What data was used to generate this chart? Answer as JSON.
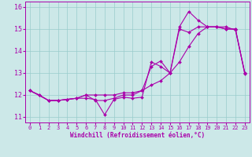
{
  "xlabel": "Windchill (Refroidissement éolien,°C)",
  "xlim": [
    -0.5,
    23.5
  ],
  "ylim": [
    10.75,
    16.25
  ],
  "yticks": [
    11,
    12,
    13,
    14,
    15,
    16
  ],
  "xticks": [
    0,
    1,
    2,
    3,
    4,
    5,
    6,
    7,
    8,
    9,
    10,
    11,
    12,
    13,
    14,
    15,
    16,
    17,
    18,
    19,
    20,
    21,
    22,
    23
  ],
  "bg_color": "#cce8e8",
  "line_color": "#aa00aa",
  "grid_color": "#99cccc",
  "line1_x": [
    0,
    1,
    2,
    3,
    4,
    5,
    6,
    7,
    8,
    9,
    10,
    11,
    12,
    13,
    14,
    15,
    16,
    17,
    18,
    19,
    20,
    21,
    22,
    23
  ],
  "line1_y": [
    12.2,
    12.0,
    11.75,
    11.75,
    11.8,
    11.85,
    11.85,
    11.8,
    11.1,
    11.8,
    11.9,
    11.85,
    11.9,
    13.5,
    13.3,
    13.0,
    15.0,
    14.85,
    15.1,
    15.1,
    15.1,
    15.0,
    15.0,
    13.0
  ],
  "line2_x": [
    0,
    1,
    2,
    3,
    4,
    5,
    6,
    7,
    8,
    9,
    10,
    11,
    12,
    13,
    14,
    15,
    16,
    17,
    18,
    19,
    20,
    21,
    22,
    23
  ],
  "line2_y": [
    12.2,
    12.0,
    11.75,
    11.75,
    11.8,
    11.85,
    12.0,
    12.0,
    12.0,
    12.0,
    12.1,
    12.1,
    12.2,
    12.45,
    12.65,
    13.0,
    13.5,
    14.2,
    14.8,
    15.1,
    15.1,
    15.1,
    14.95,
    13.0
  ],
  "line3_x": [
    0,
    2,
    3,
    4,
    5,
    6,
    7,
    8,
    9,
    10,
    11,
    12,
    13,
    14,
    15,
    16,
    17,
    18,
    19,
    20,
    21,
    22,
    23
  ],
  "line3_y": [
    12.2,
    11.75,
    11.75,
    11.8,
    11.85,
    12.0,
    11.75,
    11.75,
    11.85,
    12.0,
    12.0,
    12.2,
    13.3,
    13.55,
    13.0,
    15.1,
    15.8,
    15.4,
    15.1,
    15.1,
    15.0,
    15.0,
    12.95
  ]
}
